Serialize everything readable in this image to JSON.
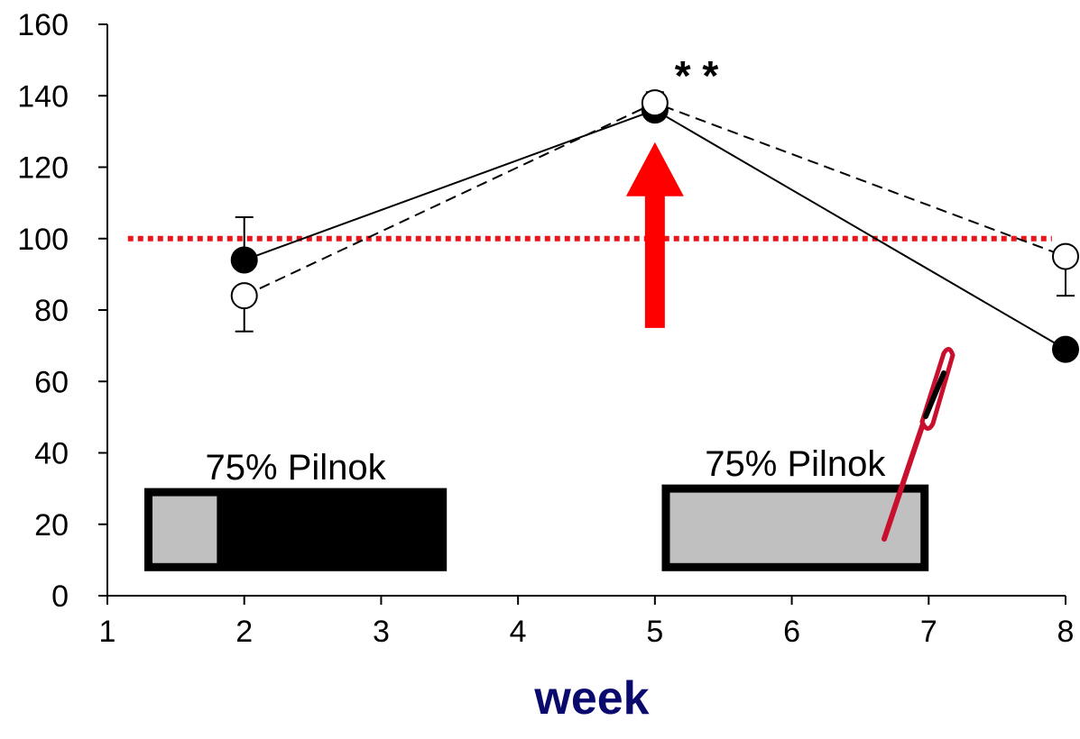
{
  "chart_data": {
    "type": "line",
    "title": "",
    "xlabel": "week",
    "ylabel": "",
    "xlim": [
      1,
      8
    ],
    "ylim": [
      0,
      160
    ],
    "x_ticks": [
      "1",
      "2",
      "3",
      "4",
      "5",
      "6",
      "7",
      "8"
    ],
    "y_ticks": [
      "0",
      "20",
      "40",
      "60",
      "80",
      "100",
      "120",
      "140",
      "160"
    ],
    "grid": false,
    "legend": "none",
    "series": [
      {
        "style": "solid-line-filled-circle",
        "x": [
          2,
          5,
          8
        ],
        "y": [
          94,
          136,
          69
        ],
        "error_upper": [
          106,
          null,
          null
        ]
      },
      {
        "style": "dashed-line-open-circle",
        "x": [
          2,
          5,
          8
        ],
        "y": [
          84,
          138,
          95
        ],
        "error_lower": [
          74,
          null,
          84
        ],
        "error_upper": [
          null,
          141,
          null
        ]
      }
    ],
    "reference_line": {
      "y": 100,
      "color": "#e8151b",
      "style": "dotted"
    },
    "significance": {
      "x": 5,
      "text": "* *"
    },
    "arrow": {
      "x": 5,
      "y_from": 75,
      "y_to": 127,
      "color": "#ff0000"
    },
    "annotations": [
      {
        "label": "75% Pilnok",
        "bar": {
          "x_from": 1.3,
          "x_to": 3.45,
          "light_until": 1.8,
          "y_from": 8,
          "y_to": 29
        }
      },
      {
        "label": "75% Pilnok",
        "bar": {
          "x_from": 5.08,
          "x_to": 6.97,
          "light_until": null,
          "y_from": 8,
          "y_to": 30
        }
      }
    ],
    "pen_icon": "pen-icon",
    "colors": {
      "axis": "#000000",
      "reference": "#e8151b",
      "arrow": "#ff0000",
      "bar_light": "#c0c0c0",
      "bar_dark": "#000000",
      "pen": "#c8102e",
      "xlabel": "#0a0a6e"
    }
  }
}
